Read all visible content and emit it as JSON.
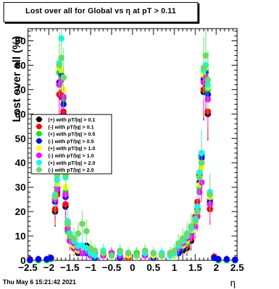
{
  "title": "Lost over all for Global vs   η at pT > 0.11",
  "footer": "Thu May  6 15:21:42 2021",
  "chart_data": {
    "type": "scatter",
    "title": "Lost over all for Global vs   η at pT > 0.11",
    "xlabel": "η",
    "ylabel": "Lost over all (%)",
    "xlim": [
      -2.5,
      2.5
    ],
    "ylim": [
      0,
      95
    ],
    "x_ticks": [
      "−2.5",
      "−2",
      "−1.5",
      "−1",
      "−0.5",
      "0",
      "0.5",
      "1",
      "1.5",
      "2",
      "2.5"
    ],
    "x_tick_values": [
      -2.5,
      -2,
      -1.5,
      -1,
      -0.5,
      0,
      0.5,
      1,
      1.5,
      2,
      2.5
    ],
    "y_ticks": [
      "0",
      "10",
      "20",
      "30",
      "40",
      "50",
      "60",
      "70",
      "80",
      "90"
    ],
    "y_tick_values": [
      0,
      10,
      20,
      30,
      40,
      50,
      60,
      70,
      80,
      90
    ],
    "grid": false,
    "legend_position": "middle-left",
    "series": [
      {
        "name": "(+) with pT/|q| > 0.1",
        "color": "#000000",
        "x": [
          -2.45,
          -2.25,
          -2.05,
          -1.95,
          -1.85,
          -1.8,
          -1.75,
          -1.7,
          -1.65,
          -1.6,
          -1.55,
          -1.5,
          -1.4,
          -1.3,
          -1.2,
          -1.1,
          -1.0,
          -0.9,
          -0.7,
          -0.5,
          -0.3,
          -0.1,
          0.1,
          0.3,
          0.5,
          0.7,
          0.9,
          1.0,
          1.1,
          1.2,
          1.3,
          1.4,
          1.5,
          1.55,
          1.6,
          1.65,
          1.7,
          1.75,
          1.8,
          1.85,
          1.95,
          2.05,
          2.25,
          2.45
        ],
        "y": [
          0.3,
          0.3,
          0.3,
          0.8,
          20,
          28,
          72,
          67,
          60,
          22,
          16,
          8,
          6,
          3,
          3,
          6,
          2,
          2,
          2,
          2,
          2,
          2,
          2,
          2,
          2,
          2,
          2,
          2,
          3,
          4,
          5,
          8,
          17,
          22,
          35,
          43,
          69,
          72,
          60,
          21,
          1,
          0.3,
          0.3,
          0.3
        ]
      },
      {
        "name": "(-) with pT/|q| > 0.1",
        "color": "#ff0000",
        "x": [
          -2.45,
          -2.25,
          -2.05,
          -1.95,
          -1.85,
          -1.8,
          -1.75,
          -1.7,
          -1.65,
          -1.6,
          -1.55,
          -1.5,
          -1.4,
          -1.3,
          -1.2,
          -1.1,
          -1.0,
          -0.9,
          -0.7,
          -0.5,
          -0.3,
          -0.1,
          0.1,
          0.3,
          0.5,
          0.7,
          0.9,
          1.0,
          1.1,
          1.2,
          1.3,
          1.4,
          1.5,
          1.55,
          1.6,
          1.65,
          1.7,
          1.75,
          1.8,
          1.85,
          1.95,
          2.05,
          2.25,
          2.45
        ],
        "y": [
          0.5,
          0.3,
          0.3,
          1,
          21,
          27,
          68,
          69,
          61,
          23,
          14,
          9,
          5,
          4,
          3,
          5,
          2,
          3,
          2,
          3,
          2,
          1,
          2,
          3,
          2,
          3,
          2,
          3,
          4,
          5,
          6,
          9,
          18,
          24,
          36,
          44,
          70,
          73,
          61,
          21,
          1.5,
          0.5,
          0.3,
          0.3
        ]
      },
      {
        "name": "(+) with pT/|q| > 0.5",
        "color": "#00ee00",
        "x": [
          -2.45,
          -2.25,
          -2.05,
          -1.95,
          -1.85,
          -1.8,
          -1.75,
          -1.7,
          -1.65,
          -1.6,
          -1.55,
          -1.5,
          -1.4,
          -1.3,
          -1.2,
          -1.1,
          -1.0,
          -0.9,
          -0.7,
          -0.5,
          -0.3,
          -0.1,
          0.1,
          0.3,
          0.5,
          0.7,
          0.9,
          1.0,
          1.1,
          1.2,
          1.3,
          1.4,
          1.5,
          1.55,
          1.6,
          1.65,
          1.7,
          1.75,
          1.8,
          1.85,
          1.95,
          2.05,
          2.25,
          2.45
        ],
        "y": [
          0,
          0,
          0,
          0.5,
          25,
          33,
          77,
          75,
          66,
          28,
          12,
          10,
          7,
          5,
          4,
          4,
          2,
          2,
          2,
          3,
          2,
          2,
          3,
          2,
          3,
          2,
          2,
          3,
          4,
          6,
          7,
          10,
          15,
          20,
          30,
          40,
          75,
          78,
          70,
          25,
          1,
          0,
          0,
          0
        ]
      },
      {
        "name": "(-) with pT/|q| > 0.5",
        "color": "#0000ff",
        "x": [
          -2.45,
          -2.25,
          -2.05,
          -1.95,
          -1.85,
          -1.8,
          -1.75,
          -1.7,
          -1.65,
          -1.6,
          -1.55,
          -1.5,
          -1.4,
          -1.3,
          -1.2,
          -1.1,
          -1.0,
          -0.9,
          -0.7,
          -0.5,
          -0.3,
          -0.1,
          0.1,
          0.3,
          0.5,
          0.7,
          0.9,
          1.0,
          1.1,
          1.2,
          1.3,
          1.4,
          1.5,
          1.55,
          1.6,
          1.65,
          1.7,
          1.75,
          1.8,
          1.85,
          1.95,
          2.05,
          2.25,
          2.45
        ],
        "y": [
          0.2,
          0.5,
          0.5,
          1,
          24,
          30,
          73,
          76,
          64,
          26,
          15,
          11,
          8,
          6,
          5,
          3,
          2,
          1,
          2,
          2,
          1,
          2,
          2,
          2,
          1,
          2,
          3,
          2,
          3,
          5,
          8,
          11,
          16,
          21,
          32,
          42,
          74,
          77,
          68,
          24,
          1,
          0.5,
          0.5,
          0.2
        ]
      },
      {
        "name": "(+) with pT/|q| > 1.0",
        "color": "#ffff00",
        "x": [
          -1.85,
          -1.8,
          -1.75,
          -1.7,
          -1.65,
          -1.6,
          -1.55,
          -1.5,
          -1.4,
          -1.3,
          -1.2,
          -1.1,
          -1.0,
          -0.9,
          -0.7,
          -0.5,
          -0.3,
          -0.1,
          0.1,
          0.3,
          0.5,
          0.7,
          0.9,
          1.0,
          1.1,
          1.2,
          1.3,
          1.4,
          1.5,
          1.55,
          1.6,
          1.65,
          1.7,
          1.75,
          1.8,
          1.85
        ],
        "y": [
          26,
          31,
          79,
          78,
          70,
          30,
          14,
          9,
          6,
          4,
          4,
          5,
          3,
          2,
          3,
          2,
          3,
          2,
          2,
          3,
          2,
          2,
          3,
          2,
          5,
          6,
          8,
          12,
          15,
          19,
          31,
          38,
          76,
          79,
          71,
          26
        ]
      },
      {
        "name": "(-) with pT/|q| > 1.0",
        "color": "#ff00ff",
        "x": [
          -1.85,
          -1.8,
          -1.75,
          -1.7,
          -1.65,
          -1.6,
          -1.55,
          -1.5,
          -1.4,
          -1.3,
          -1.2,
          -1.1,
          -1.0,
          -0.9,
          -0.7,
          -0.5,
          -0.3,
          -0.1,
          0.1,
          0.3,
          0.5,
          0.7,
          0.9,
          1.0,
          1.1,
          1.2,
          1.3,
          1.4,
          1.5,
          1.55,
          1.6,
          1.65,
          1.7,
          1.75,
          1.8,
          1.85
        ],
        "y": [
          25,
          29,
          72,
          74,
          67,
          27,
          13,
          8,
          7,
          5,
          3,
          4,
          2,
          3,
          2,
          3,
          2,
          3,
          2,
          2,
          3,
          2,
          2,
          3,
          5,
          7,
          9,
          10,
          14,
          18,
          28,
          32,
          73,
          75,
          66,
          23
        ]
      },
      {
        "name": "(+) with pT/|q| > 2.0",
        "color": "#00ffff",
        "x": [
          -1.85,
          -1.8,
          -1.75,
          -1.7,
          -1.65,
          -1.6,
          -1.55,
          -1.5,
          -1.4,
          -1.3,
          -1.2,
          -1.1,
          -1.0,
          -0.9,
          -0.7,
          -0.5,
          -0.3,
          -0.1,
          0.1,
          0.3,
          0.5,
          0.7,
          0.9,
          1.0,
          1.1,
          1.2,
          1.3,
          1.4,
          1.5,
          1.55,
          1.6,
          1.65,
          1.7,
          1.75,
          1.8,
          1.85
        ],
        "y": [
          27,
          33,
          81,
          91,
          75,
          34,
          16,
          11,
          8,
          6,
          6,
          5,
          3,
          2,
          4,
          2,
          3,
          3,
          2,
          3,
          3,
          3,
          2,
          3,
          6,
          8,
          10,
          13,
          17,
          22,
          36,
          44,
          78,
          80,
          72,
          28
        ]
      },
      {
        "name": "(-) with pT/|q| > 2.0",
        "color": "#66dd66",
        "x": [
          -1.85,
          -1.8,
          -1.75,
          -1.7,
          -1.65,
          -1.6,
          -1.55,
          -1.5,
          -1.4,
          -1.3,
          -1.2,
          -1.1,
          -1.0,
          -0.9,
          -0.7,
          -0.5,
          -0.3,
          -0.1,
          0.1,
          0.3,
          0.5,
          0.7,
          0.9,
          1.0,
          1.1,
          1.2,
          1.3,
          1.4,
          1.5,
          1.55,
          1.6,
          1.65,
          1.7,
          1.75,
          1.8,
          1.85
        ],
        "y": [
          26,
          35,
          80,
          83,
          75,
          35,
          15,
          10,
          9,
          11,
          15,
          12,
          5,
          4,
          3,
          2,
          4,
          3,
          2,
          4,
          3,
          2,
          3,
          4,
          7,
          9,
          11,
          14,
          16,
          20,
          34,
          40,
          79,
          84,
          74,
          27
        ]
      }
    ]
  }
}
